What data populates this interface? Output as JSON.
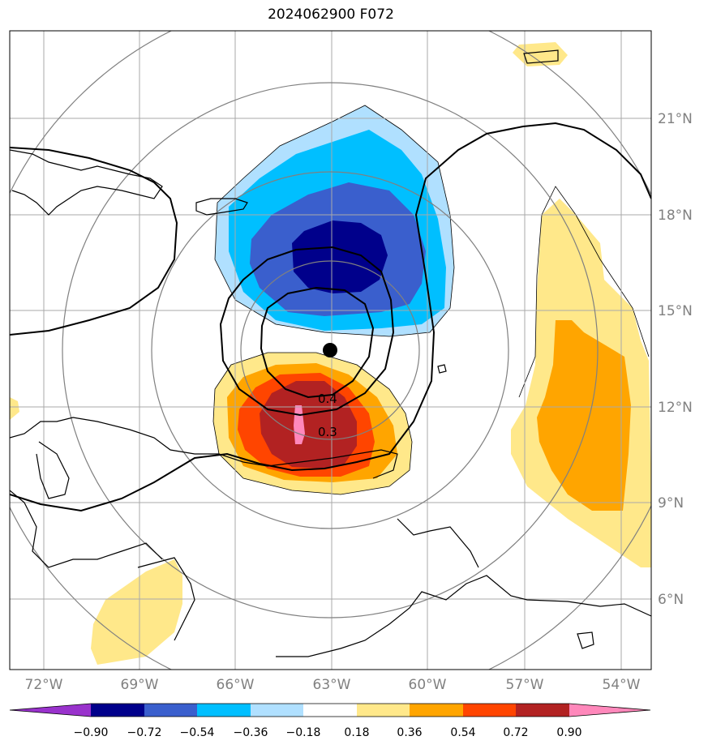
{
  "title": "2024062900 F072",
  "lon_labels": [
    "72°W",
    "69°W",
    "66°W",
    "63°W",
    "60°W",
    "57°W",
    "54°W"
  ],
  "lat_labels": [
    "21°N",
    "18°N",
    "15°N",
    "12°N",
    "9°N",
    "6°N"
  ],
  "contour_labels": [
    "0.4",
    "0.3"
  ],
  "colorbar": {
    "ticks": [
      "−0.90",
      "−0.72",
      "−0.54",
      "−0.36",
      "−0.18",
      "0.18",
      "0.36",
      "0.54",
      "0.72",
      "0.90"
    ],
    "colors": [
      "#9932cc",
      "#00008b",
      "#3a5fcd",
      "#00bfff",
      "#b0e0ff",
      "#ffffff",
      "#ffe88a",
      "#ffa500",
      "#ff4500",
      "#b22222",
      "#ff88bb"
    ]
  },
  "center_marker": {
    "lon": -63.0,
    "lat": 13.7
  }
}
